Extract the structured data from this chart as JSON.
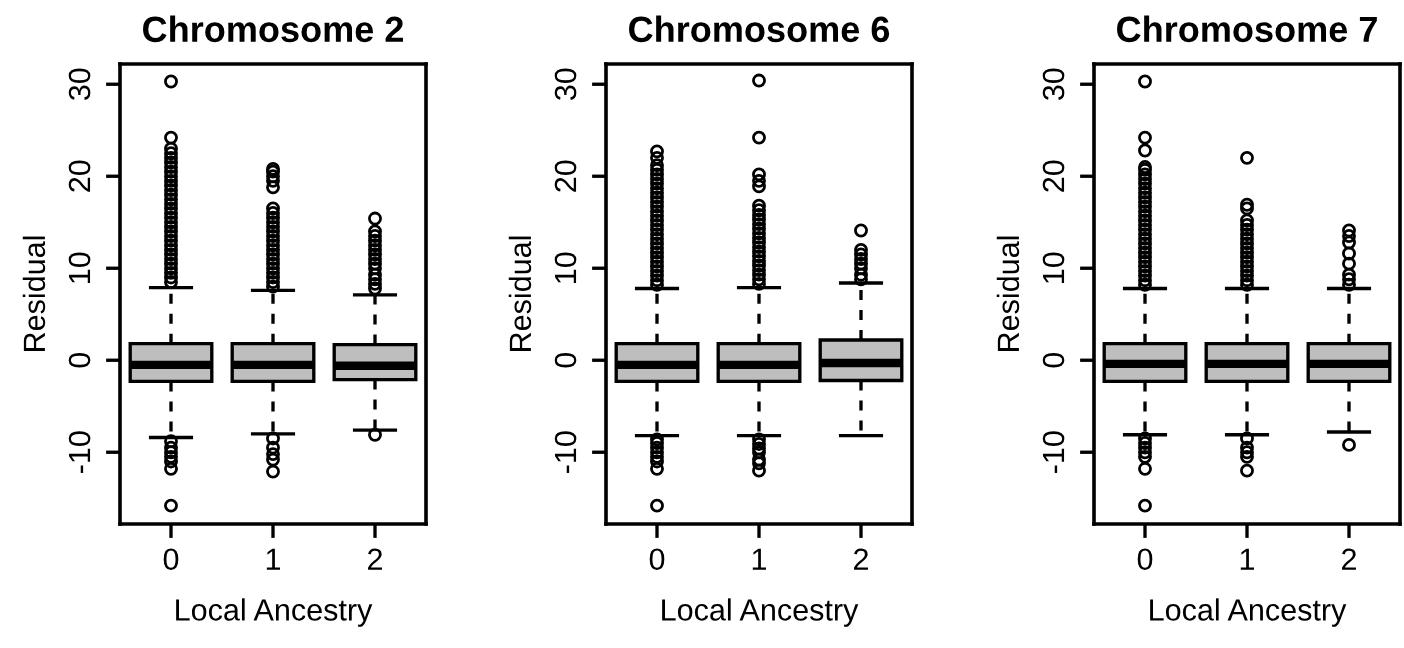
{
  "chart_data": [
    {
      "type": "box",
      "title": "Chromosome 2",
      "xlabel": "Local Ancestry",
      "ylabel": "Residual",
      "categories": [
        "0",
        "1",
        "2"
      ],
      "color": "#bebebe",
      "ylim": [
        -17.8,
        32.2
      ],
      "yticks": [
        -10,
        0,
        10,
        20,
        30
      ],
      "grid": false,
      "boxes": [
        {
          "low": -8.4,
          "q1": -2.3,
          "median": -0.5,
          "q3": 1.8,
          "high": 7.9,
          "outliers": [
            8.5,
            9,
            9.5,
            10,
            10.5,
            11,
            11.5,
            12,
            12.5,
            13,
            13.5,
            14,
            14.5,
            15,
            15.5,
            16,
            16.5,
            17,
            17.5,
            18,
            18.5,
            19,
            19.5,
            20,
            20.5,
            21,
            21.5,
            22,
            22.5,
            23,
            24.2,
            30.3,
            -8.8,
            -9.5,
            -10,
            -10.5,
            -11,
            -11.8,
            -15.8
          ]
        },
        {
          "low": -8.0,
          "q1": -2.3,
          "median": -0.5,
          "q3": 1.8,
          "high": 7.6,
          "outliers": [
            8,
            8.5,
            9,
            9.5,
            10,
            10.5,
            11,
            11.5,
            12,
            12.5,
            13,
            13.5,
            14,
            14.5,
            15,
            15.5,
            16,
            16.5,
            18.8,
            19.5,
            20,
            20.5,
            20.8,
            -8.5,
            -9.5,
            -10.2,
            -10.8,
            -12.1
          ]
        },
        {
          "low": -7.6,
          "q1": -2.1,
          "median": -0.6,
          "q3": 1.7,
          "high": 7.1,
          "outliers": [
            7.8,
            8.3,
            8.8,
            9.3,
            10,
            10.5,
            11,
            11.5,
            12,
            12.5,
            13,
            13.5,
            14,
            15.4,
            -8.1
          ]
        }
      ]
    },
    {
      "type": "box",
      "title": "Chromosome 6",
      "xlabel": "Local Ancestry",
      "ylabel": "Residual",
      "categories": [
        "0",
        "1",
        "2"
      ],
      "color": "#bebebe",
      "ylim": [
        -17.8,
        32.2
      ],
      "yticks": [
        -10,
        0,
        10,
        20,
        30
      ],
      "grid": false,
      "boxes": [
        {
          "low": -8.2,
          "q1": -2.3,
          "median": -0.5,
          "q3": 1.8,
          "high": 7.8,
          "outliers": [
            8.2,
            8.7,
            9.2,
            9.7,
            10.2,
            10.7,
            11.2,
            11.7,
            12.2,
            12.7,
            13.2,
            13.7,
            14.2,
            14.7,
            15.2,
            15.7,
            16.2,
            16.7,
            17.2,
            17.7,
            18.2,
            18.7,
            19.2,
            19.7,
            20.2,
            20.7,
            21.2,
            22,
            22.7,
            -8.6,
            -9,
            -9.5,
            -10,
            -10.5,
            -11,
            -11.8,
            -15.8
          ]
        },
        {
          "low": -8.2,
          "q1": -2.3,
          "median": -0.5,
          "q3": 1.8,
          "high": 7.9,
          "outliers": [
            8.3,
            8.8,
            9.3,
            9.8,
            10.3,
            10.8,
            11.3,
            11.8,
            12.3,
            12.8,
            13.3,
            13.8,
            14.3,
            14.8,
            15.3,
            15.8,
            16.3,
            16.8,
            18.9,
            19.5,
            20.2,
            24.2,
            30.4,
            -8.6,
            -9.1,
            -9.6,
            -10,
            -10.8,
            -11.2,
            -12.0
          ]
        },
        {
          "low": -8.2,
          "q1": -2.2,
          "median": -0.3,
          "q3": 2.2,
          "high": 8.4,
          "outliers": [
            8.8,
            9.3,
            10,
            10.5,
            11,
            11.5,
            12,
            14.1
          ]
        }
      ]
    },
    {
      "type": "box",
      "title": "Chromosome 7",
      "xlabel": "Local Ancestry",
      "ylabel": "Residual",
      "categories": [
        "0",
        "1",
        "2"
      ],
      "color": "#bebebe",
      "ylim": [
        -17.8,
        32.2
      ],
      "yticks": [
        -10,
        0,
        10,
        20,
        30
      ],
      "grid": false,
      "boxes": [
        {
          "low": -8.1,
          "q1": -2.3,
          "median": -0.4,
          "q3": 1.8,
          "high": 7.8,
          "outliers": [
            8.2,
            8.7,
            9.2,
            9.7,
            10.2,
            10.7,
            11.2,
            11.7,
            12.2,
            12.7,
            13.2,
            13.7,
            14.2,
            14.7,
            15.2,
            15.7,
            16.2,
            16.7,
            17.2,
            17.7,
            18.2,
            18.7,
            19.2,
            19.7,
            20.2,
            20.7,
            21,
            22.8,
            24.2,
            30.3,
            -8.5,
            -9,
            -9.5,
            -10,
            -10.5,
            -11.8,
            -15.8
          ]
        },
        {
          "low": -8.1,
          "q1": -2.3,
          "median": -0.4,
          "q3": 1.8,
          "high": 7.8,
          "outliers": [
            8.2,
            8.7,
            9.2,
            9.7,
            10.2,
            10.7,
            11.2,
            11.7,
            12.2,
            12.7,
            13.2,
            13.7,
            14.2,
            14.7,
            15.2,
            16.5,
            16.9,
            22.0,
            -8.5,
            -9.5,
            -10,
            -10.5,
            -12.0
          ]
        },
        {
          "low": -7.8,
          "q1": -2.3,
          "median": -0.4,
          "q3": 1.8,
          "high": 7.8,
          "outliers": [
            8.2,
            8.8,
            9.3,
            10.5,
            11.6,
            12.8,
            13.5,
            14.1,
            -9.2
          ]
        }
      ]
    }
  ]
}
